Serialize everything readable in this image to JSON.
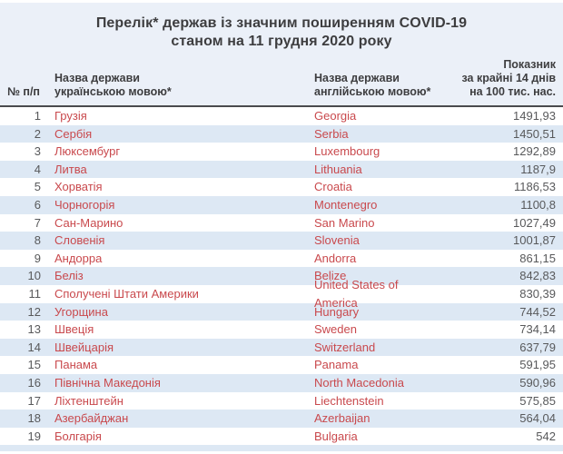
{
  "header": {
    "title_line1": "Перелік* держав із значним поширенням COVID-19",
    "title_line2": "станом на 11 грудня 2020 року"
  },
  "columns": {
    "num": "№ п/п",
    "uk_line1": "Назва держави",
    "uk_line2": "українською мовою*",
    "en_line1": "Назва держави",
    "en_line2": "англійською мовою*",
    "ind_line1": "Показник",
    "ind_line2": "за крайні 14 днів",
    "ind_line3": "на 100 тис. нас."
  },
  "rows": [
    {
      "num": "1",
      "uk": "Грузія",
      "en": "Georgia",
      "value": "1491,93"
    },
    {
      "num": "2",
      "uk": "Сербія",
      "en": "Serbia",
      "value": "1450,51"
    },
    {
      "num": "3",
      "uk": "Люксембург",
      "en": "Luxembourg",
      "value": "1292,89"
    },
    {
      "num": "4",
      "uk": "Литва",
      "en": "Lithuania",
      "value": "1187,9"
    },
    {
      "num": "5",
      "uk": "Хорватія",
      "en": "Croatia",
      "value": "1186,53"
    },
    {
      "num": "6",
      "uk": "Чорногорія",
      "en": "Montenegro",
      "value": "1100,8"
    },
    {
      "num": "7",
      "uk": "Сан-Марино",
      "en": "San Marino",
      "value": "1027,49"
    },
    {
      "num": "8",
      "uk": "Словенія",
      "en": "Slovenia",
      "value": "1001,87"
    },
    {
      "num": "9",
      "uk": "Андорра",
      "en": "Andorra",
      "value": "861,15"
    },
    {
      "num": "10",
      "uk": "Беліз",
      "en": "Belize",
      "value": "842,83"
    },
    {
      "num": "11",
      "uk": "Сполучені Штати Америки",
      "en": "United States of America",
      "value": "830,39"
    },
    {
      "num": "12",
      "uk": "Угорщина",
      "en": "Hungary",
      "value": "744,52"
    },
    {
      "num": "13",
      "uk": "Швеція",
      "en": "Sweden",
      "value": "734,14"
    },
    {
      "num": "14",
      "uk": "Швейцарія",
      "en": "Switzerland",
      "value": "637,79"
    },
    {
      "num": "15",
      "uk": "Панама",
      "en": "Panama",
      "value": "591,95"
    },
    {
      "num": "16",
      "uk": "Північна Македонія",
      "en": "North Macedonia",
      "value": "590,96"
    },
    {
      "num": "17",
      "uk": "Ліхтенштейн",
      "en": "Liechtenstein",
      "value": "575,85"
    },
    {
      "num": "18",
      "uk": "Азербайджан",
      "en": "Azerbaijan",
      "value": "564,04"
    },
    {
      "num": "19",
      "uk": "Болгарія",
      "en": "Bulgaria",
      "value": "542"
    }
  ],
  "colors": {
    "panel_bg": "#ebf0f8",
    "stripe_bg": "#dde8f4",
    "country_red": "#c9494d",
    "value_gray": "#58595b",
    "heading_dark": "#3d3d3f",
    "separator_dark": "#4a4a4d"
  }
}
